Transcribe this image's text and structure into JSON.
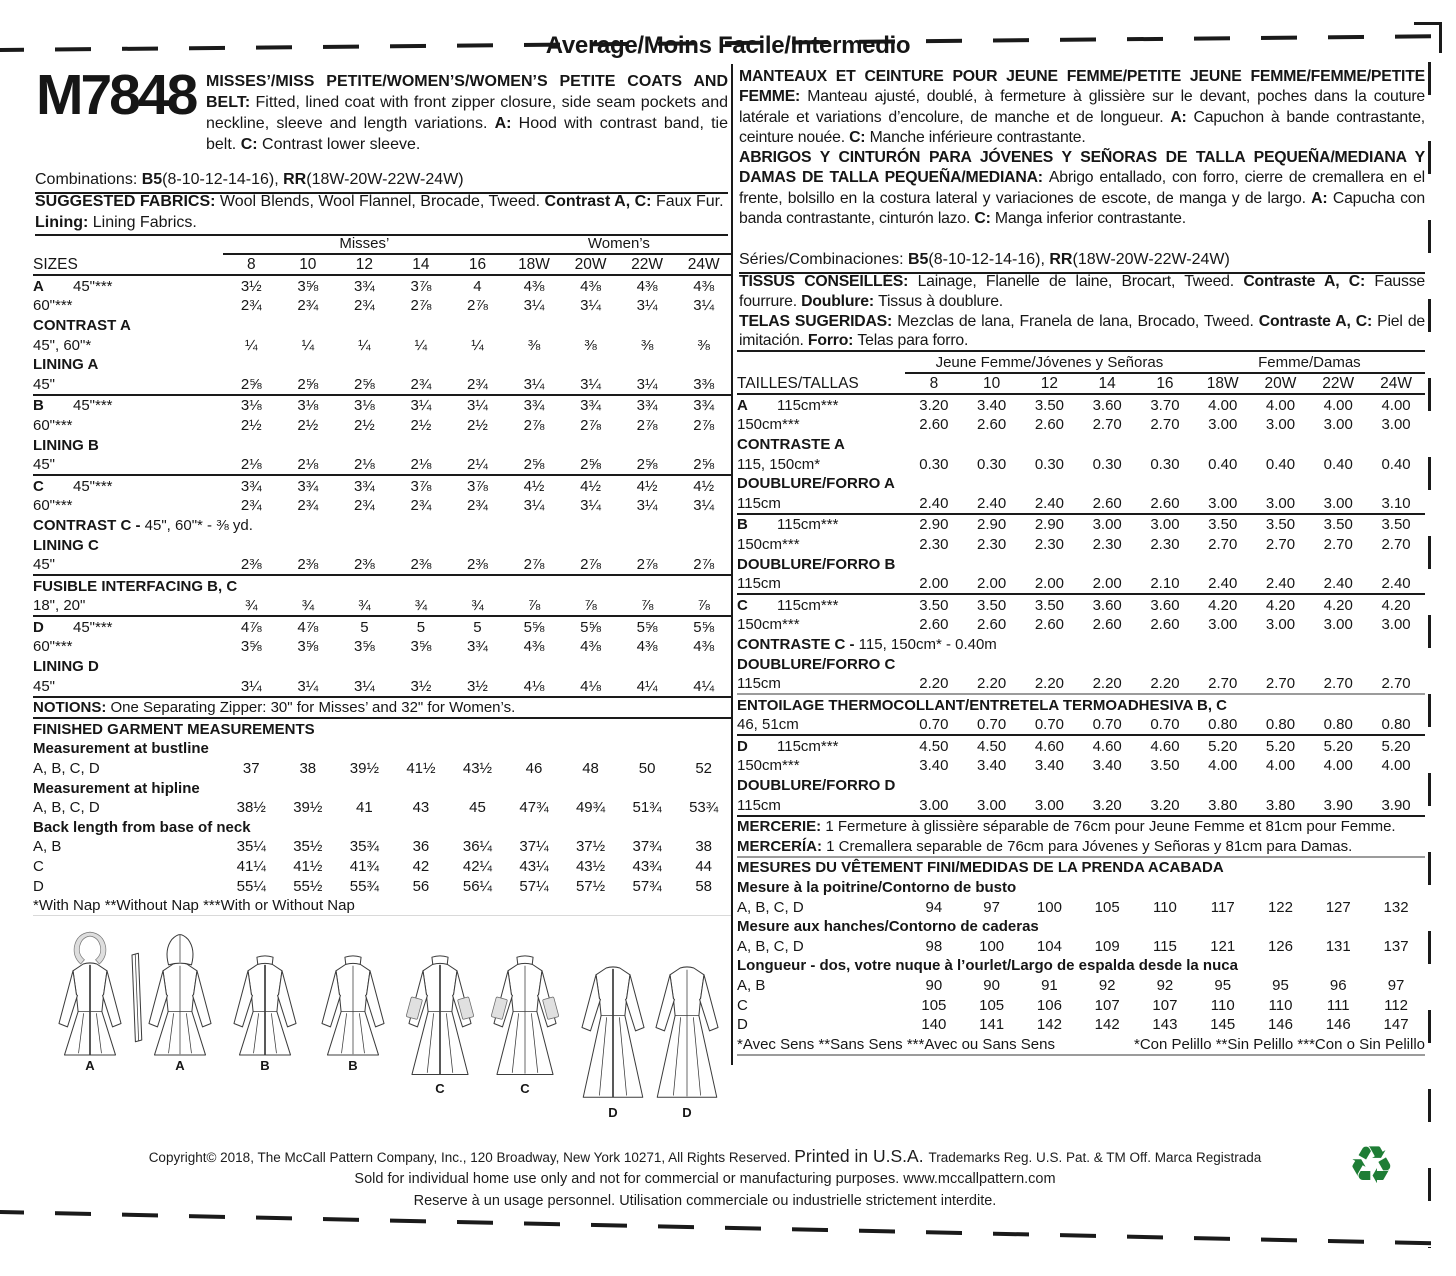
{
  "difficulty": "Average/Moins Facile/Intermedio",
  "pattern_number": "M7848",
  "colors": {
    "recycle_green": "#1e7d35",
    "ink": "#161616"
  },
  "icons": {
    "recycle": "♻"
  },
  "left": {
    "description_en": [
      {
        "b": 1,
        "t": "MISSES’/MISS PETITE/WOMEN’S/WOMEN’S PETITE COATS AND BELT: "
      },
      {
        "t": "Fitted, lined coat with front zipper closure, side seam pockets and neckline, sleeve and length variations. "
      },
      {
        "b": 1,
        "t": "A: "
      },
      {
        "t": "Hood with contrast band, tie belt. "
      },
      {
        "b": 1,
        "t": "C: "
      },
      {
        "t": "Contrast lower sleeve."
      }
    ],
    "combinations": [
      {
        "t": "Combinations: "
      },
      {
        "b": 1,
        "t": "B5"
      },
      {
        "t": "(8-10-12-14-16), "
      },
      {
        "b": 1,
        "t": "RR"
      },
      {
        "t": "(18W-20W-22W-24W)"
      }
    ],
    "fabrics": [
      {
        "b": 1,
        "t": "SUGGESTED FABRICS: "
      },
      {
        "t": "Wool Blends, Wool Flannel, Brocade, Tweed. "
      },
      {
        "b": 1,
        "t": "Contrast A, C: "
      },
      {
        "t": "Faux Fur. "
      },
      {
        "b": 1,
        "t": "Lining: "
      },
      {
        "t": "Lining Fabrics."
      }
    ]
  },
  "right": {
    "description_fr": [
      {
        "b": 1,
        "t": "MANTEAUX ET CEINTURE POUR JEUNE FEMME/PETITE JEUNE FEMME/FEMME/PETITE FEMME: "
      },
      {
        "t": "Manteau ajusté, doublé, à fermeture à glissière sur le devant, poches dans la couture latérale et variations d’encolure, de manche et de longueur. "
      },
      {
        "b": 1,
        "t": "A: "
      },
      {
        "t": "Capuchon à bande contrastante, ceinture nouée. "
      },
      {
        "b": 1,
        "t": "C: "
      },
      {
        "t": "Manche inférieure contrastante."
      }
    ],
    "description_es": [
      {
        "b": 1,
        "t": "ABRIGOS Y CINTURÓN PARA JÓVENES Y SEÑORAS DE TALLA PEQUEÑA/MEDIANA Y DAMAS DE TALLA PEQUEÑA/MEDIANA: "
      },
      {
        "t": "Abrigo entallado, con forro, cierre de cremallera en el frente, bolsillo en la costura lateral y variaciones de escote, de manga y de largo. "
      },
      {
        "b": 1,
        "t": "A: "
      },
      {
        "t": "Capucha con banda contrastante, cinturón lazo. "
      },
      {
        "b": 1,
        "t": "C: "
      },
      {
        "t": "Manga inferior contrastante."
      }
    ],
    "series": [
      {
        "t": "Séries/Combinaciones: "
      },
      {
        "b": 1,
        "t": "B5"
      },
      {
        "t": "(8-10-12-14-16), "
      },
      {
        "b": 1,
        "t": "RR"
      },
      {
        "t": "(18W-20W-22W-24W)"
      }
    ],
    "tissus": [
      {
        "b": 1,
        "t": "TISSUS CONSEILLÉS: "
      },
      {
        "t": "Lainage, Flanelle de laine, Brocart, Tweed. "
      },
      {
        "b": 1,
        "t": "Contraste A, C: "
      },
      {
        "t": "Fausse fourrure. "
      },
      {
        "b": 1,
        "t": "Doublure: "
      },
      {
        "t": "Tissus à doublure."
      }
    ],
    "telas": [
      {
        "b": 1,
        "t": "TELAS SUGERIDAS: "
      },
      {
        "t": "Mezclas de lana, Franela de lana, Brocado, Tweed. "
      },
      {
        "b": 1,
        "t": "Contraste A, C: "
      },
      {
        "t": "Piel de imitación. "
      },
      {
        "b": 1,
        "t": "Forro: "
      },
      {
        "t": "Telas para forro."
      }
    ]
  },
  "table_us": {
    "group1": "Misses’",
    "group2": "Women’s",
    "corner": "SIZES",
    "sizes": [
      "8",
      "10",
      "12",
      "14",
      "16",
      "18W",
      "20W",
      "22W",
      "24W"
    ],
    "rows": [
      {
        "L": "A",
        "l": "45\"***",
        "v": [
          "3½",
          "3⅝",
          "3¾",
          "3⅞",
          "4",
          "4⅜",
          "4⅜",
          "4⅜",
          "4⅜"
        ]
      },
      {
        "i": 1,
        "l": "60\"***",
        "v": [
          "2¾",
          "2¾",
          "2¾",
          "2⅞",
          "2⅞",
          "3¼",
          "3¼",
          "3¼",
          "3¼"
        ]
      },
      {
        "s": "CONTRAST A"
      },
      {
        "i": 1,
        "l": "45\", 60\"*",
        "v": [
          "¼",
          "¼",
          "¼",
          "¼",
          "¼",
          "⅜",
          "⅜",
          "⅜",
          "⅜"
        ]
      },
      {
        "s": "LINING A"
      },
      {
        "i": 1,
        "l": "45\"",
        "v": [
          "2⅝",
          "2⅝",
          "2⅝",
          "2¾",
          "2¾",
          "3¼",
          "3¼",
          "3¼",
          "3⅜"
        ]
      },
      {
        "L": "B",
        "l": "45\"***",
        "rt": 1,
        "v": [
          "3⅛",
          "3⅛",
          "3⅛",
          "3¼",
          "3¼",
          "3¾",
          "3¾",
          "3¾",
          "3¾"
        ]
      },
      {
        "i": 1,
        "l": "60\"***",
        "v": [
          "2½",
          "2½",
          "2½",
          "2½",
          "2½",
          "2⅞",
          "2⅞",
          "2⅞",
          "2⅞"
        ]
      },
      {
        "s": "LINING B"
      },
      {
        "i": 1,
        "l": "45\"",
        "v": [
          "2⅛",
          "2⅛",
          "2⅛",
          "2⅛",
          "2¼",
          "2⅝",
          "2⅝",
          "2⅝",
          "2⅝"
        ]
      },
      {
        "L": "C",
        "l": "45\"***",
        "rt": 1,
        "v": [
          "3¾",
          "3¾",
          "3¾",
          "3⅞",
          "3⅞",
          "4½",
          "4½",
          "4½",
          "4½"
        ]
      },
      {
        "i": 1,
        "l": "60\"***",
        "v": [
          "2¾",
          "2¾",
          "2¾",
          "2¾",
          "2¾",
          "3¼",
          "3¼",
          "3¼",
          "3¼"
        ]
      },
      {
        "t": [
          {
            "b": 1,
            "t": "CONTRAST C - "
          },
          {
            "t": "45\", 60\"* - ⅜ yd."
          }
        ]
      },
      {
        "s": "LINING C"
      },
      {
        "i": 1,
        "l": "45\"",
        "v": [
          "2⅜",
          "2⅜",
          "2⅜",
          "2⅜",
          "2⅜",
          "2⅞",
          "2⅞",
          "2⅞",
          "2⅞"
        ]
      },
      {
        "s": "FUSIBLE INTERFACING B, C",
        "rt": 1
      },
      {
        "i": 1,
        "l": "18\", 20\"",
        "v": [
          "¾",
          "¾",
          "¾",
          "¾",
          "¾",
          "⅞",
          "⅞",
          "⅞",
          "⅞"
        ]
      },
      {
        "L": "D",
        "l": "45\"***",
        "rt": 1,
        "v": [
          "4⅞",
          "4⅞",
          "5",
          "5",
          "5",
          "5⅝",
          "5⅝",
          "5⅝",
          "5⅝"
        ]
      },
      {
        "i": 1,
        "l": "60\"***",
        "v": [
          "3⅝",
          "3⅝",
          "3⅝",
          "3⅝",
          "3¾",
          "4⅜",
          "4⅜",
          "4⅜",
          "4⅜"
        ]
      },
      {
        "s": "LINING D"
      },
      {
        "i": 1,
        "l": "45\"",
        "v": [
          "3¼",
          "3¼",
          "3¼",
          "3½",
          "3½",
          "4⅛",
          "4⅛",
          "4¼",
          "4¼"
        ]
      },
      {
        "t": [
          {
            "b": 1,
            "t": "NOTIONS: "
          },
          {
            "t": "One Separating Zipper: 30\" for Misses’ and 32\" for Women’s."
          }
        ],
        "rt": 1
      },
      {
        "s": "FINISHED GARMENT MEASUREMENTS",
        "rt": 1
      },
      {
        "s": "Measurement at bustline"
      },
      {
        "l": "A, B, C, D",
        "v": [
          "37",
          "38",
          "39½",
          "41½",
          "43½",
          "46",
          "48",
          "50",
          "52"
        ]
      },
      {
        "s": "Measurement at hipline"
      },
      {
        "l": "A, B, C, D",
        "v": [
          "38½",
          "39½",
          "41",
          "43",
          "45",
          "47¾",
          "49¾",
          "51¾",
          "53¾"
        ]
      },
      {
        "s": "Back length from base of neck"
      },
      {
        "l": "A, B",
        "v": [
          "35¼",
          "35½",
          "35¾",
          "36",
          "36¼",
          "37¼",
          "37½",
          "37¾",
          "38"
        ]
      },
      {
        "l": "C",
        "v": [
          "41¼",
          "41½",
          "41¾",
          "42",
          "42¼",
          "43¼",
          "43½",
          "43¾",
          "44"
        ]
      },
      {
        "l": "D",
        "v": [
          "55¼",
          "55½",
          "55¾",
          "56",
          "56¼",
          "57¼",
          "57½",
          "57¾",
          "58"
        ]
      },
      {
        "note": [
          "*With Nap **Without Nap ***With or Without Nap"
        ]
      }
    ]
  },
  "table_metric": {
    "group1": "Jeune Femme/Jóvenes y Señoras",
    "group2": "Femme/Damas",
    "corner": "TAILLES/TALLAS",
    "sizes": [
      "8",
      "10",
      "12",
      "14",
      "16",
      "18W",
      "20W",
      "22W",
      "24W"
    ],
    "rows": [
      {
        "L": "A",
        "l": "115cm***",
        "v": [
          "3.20",
          "3.40",
          "3.50",
          "3.60",
          "3.70",
          "4.00",
          "4.00",
          "4.00",
          "4.00"
        ]
      },
      {
        "i": 1,
        "l": "150cm***",
        "v": [
          "2.60",
          "2.60",
          "2.60",
          "2.70",
          "2.70",
          "3.00",
          "3.00",
          "3.00",
          "3.00"
        ]
      },
      {
        "s": "CONTRASTE A"
      },
      {
        "i": 1,
        "l": "115, 150cm*",
        "v": [
          "0.30",
          "0.30",
          "0.30",
          "0.30",
          "0.30",
          "0.40",
          "0.40",
          "0.40",
          "0.40"
        ]
      },
      {
        "s": "DOUBLURE/FORRO A"
      },
      {
        "i": 1,
        "l": "115cm",
        "v": [
          "2.40",
          "2.40",
          "2.40",
          "2.60",
          "2.60",
          "3.00",
          "3.00",
          "3.00",
          "3.10"
        ]
      },
      {
        "L": "B",
        "l": "115cm***",
        "rt": 1,
        "v": [
          "2.90",
          "2.90",
          "2.90",
          "3.00",
          "3.00",
          "3.50",
          "3.50",
          "3.50",
          "3.50"
        ]
      },
      {
        "i": 1,
        "l": "150cm***",
        "v": [
          "2.30",
          "2.30",
          "2.30",
          "2.30",
          "2.30",
          "2.70",
          "2.70",
          "2.70",
          "2.70"
        ]
      },
      {
        "s": "DOUBLURE/FORRO B"
      },
      {
        "i": 1,
        "l": "115cm",
        "v": [
          "2.00",
          "2.00",
          "2.00",
          "2.00",
          "2.10",
          "2.40",
          "2.40",
          "2.40",
          "2.40"
        ]
      },
      {
        "L": "C",
        "l": "115cm***",
        "rt": 1,
        "v": [
          "3.50",
          "3.50",
          "3.50",
          "3.60",
          "3.60",
          "4.20",
          "4.20",
          "4.20",
          "4.20"
        ]
      },
      {
        "i": 1,
        "l": "150cm***",
        "v": [
          "2.60",
          "2.60",
          "2.60",
          "2.60",
          "2.60",
          "3.00",
          "3.00",
          "3.00",
          "3.00"
        ]
      },
      {
        "t": [
          {
            "b": 1,
            "t": "CONTRASTE C - "
          },
          {
            "t": "115, 150cm* - 0.40m"
          }
        ]
      },
      {
        "s": "DOUBLURE/FORRO C"
      },
      {
        "i": 1,
        "l": "115cm",
        "v": [
          "2.20",
          "2.20",
          "2.20",
          "2.20",
          "2.20",
          "2.70",
          "2.70",
          "2.70",
          "2.70"
        ]
      },
      {
        "s": "ENTOILAGE THERMOCOLLANT/ENTRETELA TERMOADHESIVA B, C",
        "grt": 1
      },
      {
        "i": 1,
        "l": "46, 51cm",
        "v": [
          "0.70",
          "0.70",
          "0.70",
          "0.70",
          "0.70",
          "0.80",
          "0.80",
          "0.80",
          "0.80"
        ]
      },
      {
        "L": "D",
        "l": "115cm***",
        "rt": 1,
        "v": [
          "4.50",
          "4.50",
          "4.60",
          "4.60",
          "4.60",
          "5.20",
          "5.20",
          "5.20",
          "5.20"
        ]
      },
      {
        "i": 1,
        "l": "150cm***",
        "v": [
          "3.40",
          "3.40",
          "3.40",
          "3.40",
          "3.50",
          "4.00",
          "4.00",
          "4.00",
          "4.00"
        ]
      },
      {
        "s": "DOUBLURE/FORRO D"
      },
      {
        "i": 1,
        "l": "115cm",
        "v": [
          "3.00",
          "3.00",
          "3.00",
          "3.20",
          "3.20",
          "3.80",
          "3.80",
          "3.90",
          "3.90"
        ]
      },
      {
        "t": [
          {
            "b": 1,
            "t": "MERCERIE: "
          },
          {
            "t": "1 Fermeture à glissière séparable de 76cm pour Jeune Femme et 81cm pour Femme."
          }
        ],
        "rt": 1
      },
      {
        "t": [
          {
            "b": 1,
            "t": "MERCERÍA: "
          },
          {
            "t": "1 Cremallera separable de 76cm para Jóvenes y Señoras y 81cm para Damas."
          }
        ]
      },
      {
        "s": "MESURES DU VÊTEMENT FINI/MEDIDAS DE LA PRENDA ACABADA",
        "grt": 1
      },
      {
        "s": "Mesure à la poitrine/Contorno de busto"
      },
      {
        "l": "A, B, C, D",
        "v": [
          "94",
          "97",
          "100",
          "105",
          "110",
          "117",
          "122",
          "127",
          "132"
        ]
      },
      {
        "s": "Mesure aux hanches/Contorno de caderas"
      },
      {
        "l": "A, B, C, D",
        "v": [
          "98",
          "100",
          "104",
          "109",
          "115",
          "121",
          "126",
          "131",
          "137"
        ]
      },
      {
        "s": "Longueur - dos, votre nuque à l’ourlet/Largo de espalda desde la nuca"
      },
      {
        "l": "A, B",
        "v": [
          "90",
          "90",
          "91",
          "92",
          "92",
          "95",
          "95",
          "96",
          "97"
        ]
      },
      {
        "l": "C",
        "v": [
          "105",
          "105",
          "106",
          "107",
          "107",
          "110",
          "110",
          "111",
          "112"
        ]
      },
      {
        "l": "D",
        "v": [
          "140",
          "141",
          "142",
          "142",
          "143",
          "145",
          "146",
          "146",
          "147"
        ]
      },
      {
        "note": [
          "*Avec Sens **Sans Sens ***Avec ou Sans Sens",
          "*Con Pelillo **Sin Pelillo ***Con o Sin Pelillo"
        ]
      }
    ]
  },
  "drawings": {
    "labels": [
      "A",
      "A",
      "B",
      "B",
      "C",
      "C",
      "D",
      "D"
    ]
  },
  "footer": {
    "line1": [
      {
        "t": "Copyright© 2018, The McCall Pattern Company, Inc., 120 Broadway, New York 10271, All Rights Reserved. "
      },
      {
        "big": 1,
        "t": "Printed in U.S.A. "
      },
      {
        "t": "Trademarks Reg. U.S. Pat. & TM Off. Marca Registrada"
      }
    ],
    "line2": "Sold for individual home use only and not for commercial or manufacturing purposes. www.mccallpattern.com",
    "line3": "Reserve à un usage personnel. Utilisation commerciale ou industrielle strictement interdite."
  }
}
